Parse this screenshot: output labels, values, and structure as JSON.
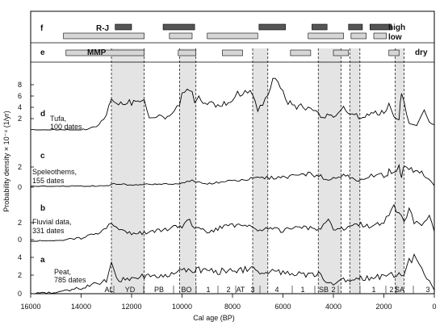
{
  "chart_data": {
    "type": "line",
    "xlabel": "Cal age (BP)",
    "ylabel": "Probability density × 10⁻⁴ (1/yr)",
    "xlim": [
      16000,
      0
    ],
    "x_ticks": [
      16000,
      14000,
      12000,
      10000,
      8000,
      6000,
      4000,
      2000,
      0
    ],
    "panels": [
      {
        "letter": "f",
        "label": "R-J",
        "high_label": "high",
        "low_label": "low",
        "high_bars": [
          [
            12650,
            12000
          ],
          [
            10750,
            9500
          ],
          [
            6950,
            5900
          ],
          [
            4850,
            4250
          ],
          [
            3400,
            2850
          ],
          [
            2550,
            1700
          ]
        ],
        "low_bars": [
          [
            14700,
            11500
          ],
          [
            10500,
            9600
          ],
          [
            9000,
            7000
          ],
          [
            5000,
            3600
          ],
          [
            3300,
            2700
          ],
          [
            2400,
            1900
          ]
        ]
      },
      {
        "letter": "e",
        "label": "MMP",
        "dry_label": "dry",
        "bars": [
          [
            14600,
            11500
          ],
          [
            10150,
            9450
          ],
          [
            8400,
            7600
          ],
          [
            5700,
            4900
          ],
          [
            4000,
            3400
          ],
          [
            1800,
            1400
          ]
        ]
      }
    ],
    "shaded_periods": [
      [
        12800,
        11500
      ],
      [
        10100,
        9450
      ],
      [
        7200,
        6600
      ],
      [
        4600,
        3700
      ],
      [
        3350,
        2950
      ],
      [
        1550,
        1200
      ]
    ],
    "series": [
      {
        "letter": "d",
        "name": "Tufa,",
        "count": "100 dates",
        "y_ticks": [
          2,
          4,
          6,
          8
        ],
        "x": [
          16000,
          15000,
          14000,
          13500,
          13100,
          12900,
          12800,
          12600,
          12000,
          11500,
          11300,
          11000,
          10500,
          10200,
          10000,
          9700,
          9500,
          9000,
          8500,
          8000,
          7800,
          7500,
          7200,
          7000,
          6600,
          6400,
          6200,
          5800,
          5200,
          4800,
          4500,
          4000,
          3600,
          3000,
          2500,
          2000,
          1800,
          1600,
          1400,
          1300,
          1000,
          700,
          400,
          200,
          0
        ],
        "y": [
          0,
          0,
          0,
          0.4,
          1.8,
          4.0,
          6.0,
          4.4,
          4.8,
          5.0,
          2.0,
          2.2,
          2.3,
          4.0,
          5.8,
          7.0,
          5.5,
          4.6,
          4.4,
          5.0,
          6.0,
          7.3,
          6.0,
          3.5,
          6.5,
          9.3,
          8.6,
          4.5,
          4.0,
          3.4,
          2.2,
          2.6,
          3.7,
          2.3,
          2.8,
          3.0,
          4.2,
          2.5,
          2.0,
          6.5,
          1.0,
          0.6,
          3.5,
          1.5,
          0.9
        ]
      },
      {
        "letter": "c",
        "name": "Speleothems,",
        "count": "155 dates",
        "y_ticks": [
          0,
          2
        ],
        "x": [
          16000,
          14000,
          13000,
          12800,
          12500,
          12000,
          11500,
          11000,
          10000,
          9600,
          9000,
          8000,
          7000,
          6000,
          5000,
          4500,
          4200,
          4000,
          3600,
          3000,
          2600,
          2200,
          1900,
          1800,
          1700,
          1500,
          1400,
          1300,
          1200,
          1000,
          500,
          0
        ],
        "y": [
          0,
          0,
          0.1,
          0.4,
          0.3,
          0.3,
          0.3,
          0.3,
          0.5,
          1.0,
          0.4,
          0.9,
          1.3,
          1.5,
          2.0,
          1.6,
          0.8,
          1.3,
          1.9,
          1.0,
          1.6,
          2.0,
          1.5,
          2.5,
          2.0,
          2.2,
          3.3,
          1.4,
          3.5,
          2.8,
          2.2,
          0.1
        ]
      },
      {
        "letter": "b",
        "name": "Fluvial data,",
        "count": "331 dates",
        "y_ticks": [
          0,
          2
        ],
        "x": [
          16000,
          15000,
          14000,
          13500,
          13000,
          12800,
          12500,
          12000,
          11500,
          11000,
          10500,
          10000,
          9800,
          9500,
          9000,
          8500,
          8000,
          7500,
          7000,
          6500,
          6000,
          5500,
          5000,
          4500,
          4200,
          4000,
          3500,
          3000,
          2500,
          2000,
          1600,
          1400,
          1200,
          1000,
          800,
          500,
          200,
          0
        ],
        "y": [
          0,
          0.1,
          0.5,
          1.0,
          1.8,
          2.8,
          1.6,
          1.2,
          1.3,
          1.6,
          2.0,
          2.3,
          3.6,
          2.0,
          1.5,
          2.0,
          2.4,
          2.8,
          1.4,
          2.0,
          1.6,
          2.5,
          2.0,
          1.8,
          3.8,
          2.0,
          2.0,
          2.6,
          2.3,
          2.8,
          5.0,
          4.2,
          3.0,
          4.6,
          3.0,
          2.6,
          3.5,
          1.5
        ]
      },
      {
        "letter": "a",
        "name": "Peat,",
        "count": "785 dates",
        "y_ticks": [
          0,
          2,
          4
        ],
        "x": [
          16000,
          15000,
          14000,
          13500,
          13000,
          12800,
          12500,
          12000,
          11500,
          11000,
          10500,
          10000,
          9500,
          9000,
          8500,
          8000,
          7500,
          7000,
          6500,
          6000,
          5000,
          4500,
          4200,
          4000,
          3600,
          3000,
          2500,
          2000,
          1700,
          1400,
          1200,
          1000,
          800,
          500,
          200,
          0
        ],
        "y": [
          0,
          0.2,
          0.8,
          1.3,
          2.0,
          4.2,
          2.0,
          2.2,
          2.6,
          2.4,
          2.8,
          3.2,
          3.6,
          3.4,
          3.2,
          3.3,
          3.6,
          3.2,
          3.4,
          3.1,
          2.8,
          2.7,
          1.5,
          1.2,
          2.0,
          2.3,
          2.3,
          2.5,
          2.7,
          3.0,
          3.0,
          4.6,
          5.2,
          3.4,
          2.0,
          0.5
        ]
      }
    ],
    "periods": [
      "AL",
      "YD",
      "PB",
      "BO",
      "1",
      "2",
      "AT",
      "3",
      "4",
      "1",
      "SB",
      "2",
      "1",
      "2",
      "SA",
      "3"
    ]
  }
}
